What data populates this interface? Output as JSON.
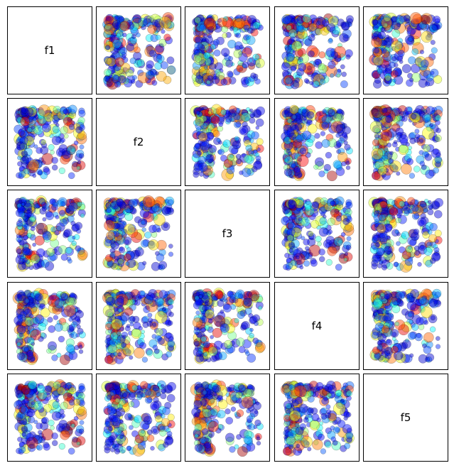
{
  "chart_data": {
    "type": "scatter",
    "title": "",
    "variables": [
      "f1",
      "f2",
      "f3",
      "f4",
      "f5"
    ],
    "xlabel": "",
    "ylabel": "",
    "grid": false,
    "marker": {
      "alpha": 0.45,
      "edge_color": "#000000",
      "colormap": "jet",
      "dominant_colors": [
        "#0000cc",
        "#1a2fd6",
        "#3355ee",
        "#00a0ff",
        "#33ddee",
        "#66ee99",
        "#cc4433"
      ]
    },
    "point_count_estimate": 1200,
    "description_note": ""
  }
}
